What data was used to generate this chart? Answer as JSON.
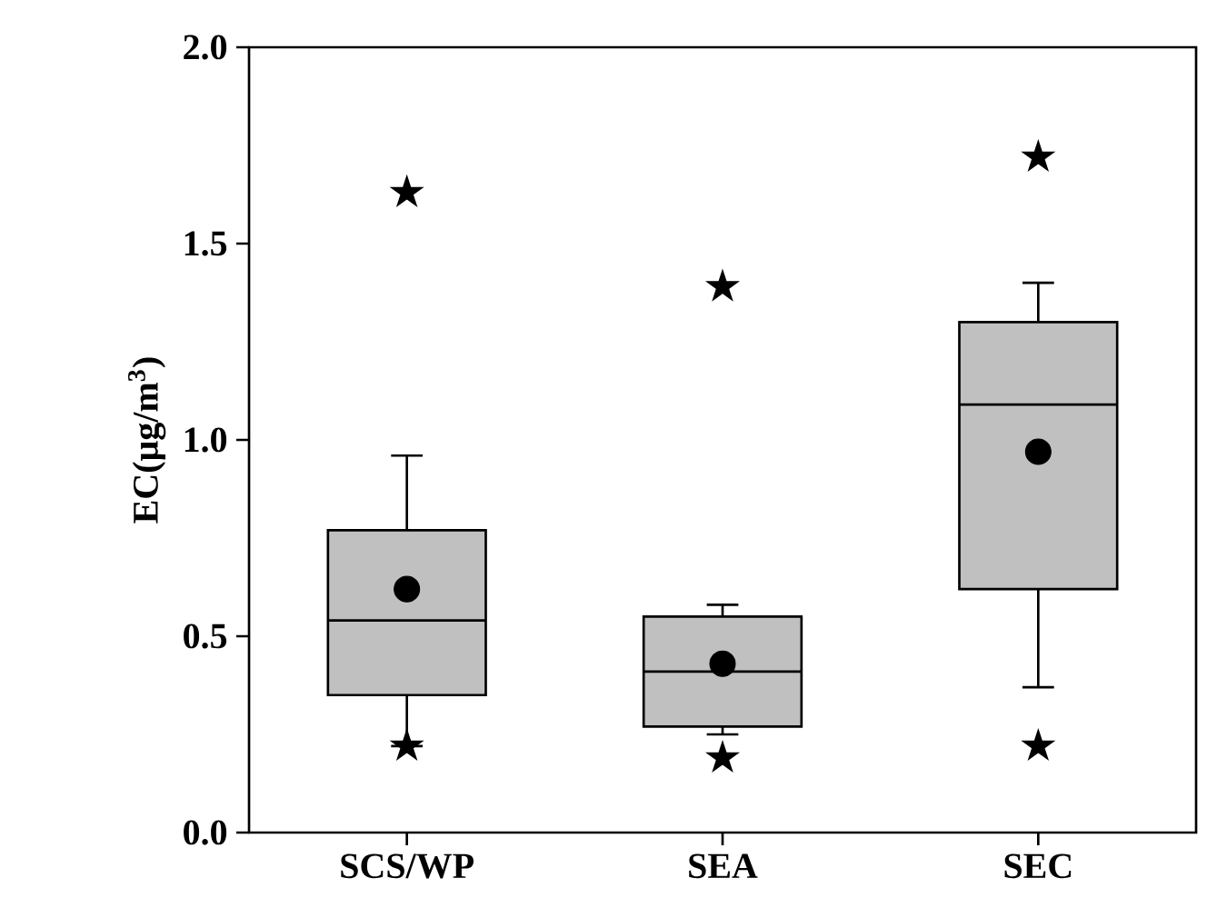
{
  "chart_data": {
    "type": "box",
    "ylabel": "EC(μg/m$^{3}$)",
    "categories": [
      "SCS/WP",
      "SEA",
      "SEC"
    ],
    "color": "#c0c0c0",
    "boxes": [
      {
        "low": 0.22,
        "q1": 0.35,
        "median": 0.54,
        "q3": 0.77,
        "high": 0.96,
        "mean": 0.62,
        "outliers": [
          1.63,
          0.22
        ]
      },
      {
        "low": 0.25,
        "q1": 0.27,
        "median": 0.41,
        "q3": 0.55,
        "high": 0.58,
        "mean": 0.43,
        "outliers": [
          1.39,
          0.19
        ]
      },
      {
        "low": 0.37,
        "q1": 0.62,
        "median": 1.09,
        "q3": 1.3,
        "high": 1.4,
        "mean": 0.97,
        "outliers": [
          1.72,
          0.22
        ]
      }
    ],
    "ylim": [
      0,
      2
    ],
    "yticks": [
      {
        "value": 0,
        "label": "0.0"
      },
      {
        "value": 0.5,
        "label": "0.5"
      },
      {
        "value": 1,
        "label": "1.0"
      },
      {
        "value": 1.5,
        "label": "1.5"
      },
      {
        "value": 2,
        "label": "2.0"
      }
    ]
  }
}
